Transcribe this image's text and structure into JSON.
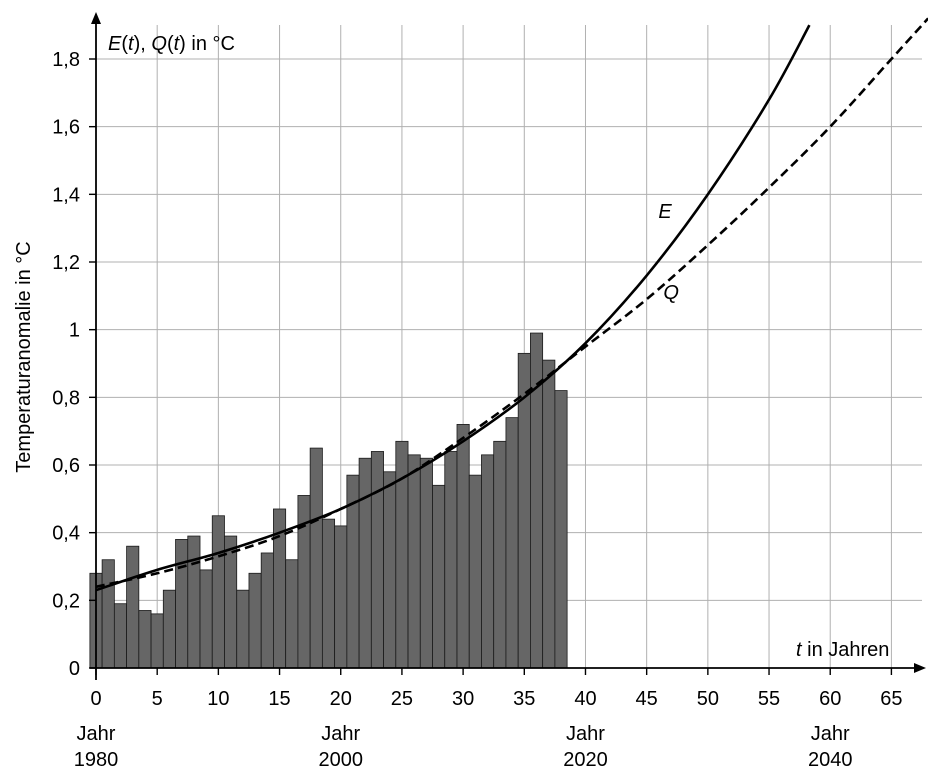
{
  "chart_data": {
    "type": "bar",
    "ylabel": "Temperaturanomalie in °C",
    "y_axis_title": {
      "e": "E",
      "e_arg": "t",
      "q": "Q",
      "q_arg": "t",
      "sep": ", ",
      "unit": " in °C"
    },
    "x_axis_title": {
      "var": "t",
      "unit": " in Jahren"
    },
    "xlim": [
      -0.5,
      68
    ],
    "ylim": [
      0,
      1.9
    ],
    "x_ticks": [
      0,
      5,
      10,
      15,
      20,
      25,
      30,
      35,
      40,
      45,
      50,
      55,
      60,
      65
    ],
    "x_tick_labels": [
      "0",
      "5",
      "10",
      "15",
      "20",
      "25",
      "30",
      "35",
      "40",
      "45",
      "50",
      "55",
      "60",
      "65"
    ],
    "y_ticks": [
      0,
      0.2,
      0.4,
      0.6,
      0.8,
      1,
      1.2,
      1.4,
      1.6,
      1.8
    ],
    "y_tick_labels": [
      "0",
      "0,2",
      "0,4",
      "0,6",
      "0,8",
      "1",
      "1,2",
      "1,4",
      "1,6",
      "1,8"
    ],
    "grid": true,
    "year_markers": [
      {
        "t": 0,
        "word": "Jahr",
        "year": "1980"
      },
      {
        "t": 20,
        "word": "Jahr",
        "year": "2000"
      },
      {
        "t": 40,
        "word": "Jahr",
        "year": "2020"
      },
      {
        "t": 60,
        "word": "Jahr",
        "year": "2040"
      }
    ],
    "bars": {
      "x": [
        0,
        1,
        2,
        3,
        4,
        5,
        6,
        7,
        8,
        9,
        10,
        11,
        12,
        13,
        14,
        15,
        16,
        17,
        18,
        19,
        20,
        21,
        22,
        23,
        24,
        25,
        26,
        27,
        28,
        29,
        30,
        31,
        32,
        33,
        34,
        35,
        36,
        37,
        38
      ],
      "values": [
        0.28,
        0.32,
        0.19,
        0.36,
        0.17,
        0.16,
        0.23,
        0.38,
        0.39,
        0.29,
        0.45,
        0.39,
        0.23,
        0.28,
        0.34,
        0.47,
        0.32,
        0.51,
        0.65,
        0.44,
        0.42,
        0.57,
        0.62,
        0.64,
        0.58,
        0.67,
        0.63,
        0.62,
        0.54,
        0.64,
        0.72,
        0.57,
        0.63,
        0.67,
        0.74,
        0.93,
        0.99,
        0.91,
        0.82
      ],
      "color": "#666666"
    },
    "series": [
      {
        "name": "E",
        "type": "line",
        "style": "solid",
        "x": [
          0,
          5,
          10,
          15,
          20,
          25,
          30,
          35,
          40,
          45,
          50,
          55,
          58.3
        ],
        "y": [
          0.23,
          0.29,
          0.34,
          0.4,
          0.47,
          0.56,
          0.67,
          0.8,
          0.96,
          1.16,
          1.4,
          1.68,
          1.9
        ]
      },
      {
        "name": "Q",
        "type": "line",
        "style": "dashed",
        "x": [
          0,
          5,
          10,
          15,
          20,
          25,
          30,
          35,
          40,
          45,
          50,
          55,
          60,
          65,
          68
        ],
        "y": [
          0.24,
          0.28,
          0.33,
          0.39,
          0.47,
          0.56,
          0.68,
          0.81,
          0.95,
          1.09,
          1.25,
          1.42,
          1.6,
          1.8,
          1.92
        ]
      }
    ],
    "curve_labels": [
      {
        "name": "E",
        "t": 46.5,
        "y": 1.33
      },
      {
        "name": "Q",
        "t": 47.0,
        "y": 1.09
      }
    ]
  }
}
